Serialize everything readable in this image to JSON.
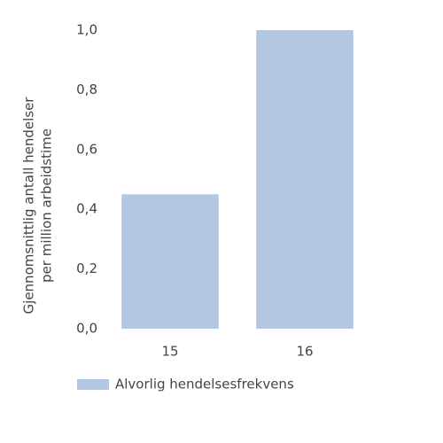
{
  "chart_data": {
    "type": "bar",
    "ylabel": [
      "Gjennomsnittlig antall hendelser",
      "per million arbeidstime"
    ],
    "categories": [
      "15",
      "16"
    ],
    "series": [
      {
        "name": "Alvorlig hendelsesfrekvens",
        "color": "#b4c7e2",
        "values": [
          0.45,
          1.0
        ]
      }
    ],
    "ylim": [
      0,
      1.0
    ],
    "yticks": [
      {
        "value": 0,
        "label": "0,0"
      },
      {
        "value": 0.2,
        "label": "0,2"
      },
      {
        "value": 0.4,
        "label": "0,4"
      },
      {
        "value": 0.6,
        "label": "0,6"
      },
      {
        "value": 0.8,
        "label": "0,8"
      },
      {
        "value": 1.0,
        "label": "1,0"
      }
    ],
    "grid": false
  }
}
